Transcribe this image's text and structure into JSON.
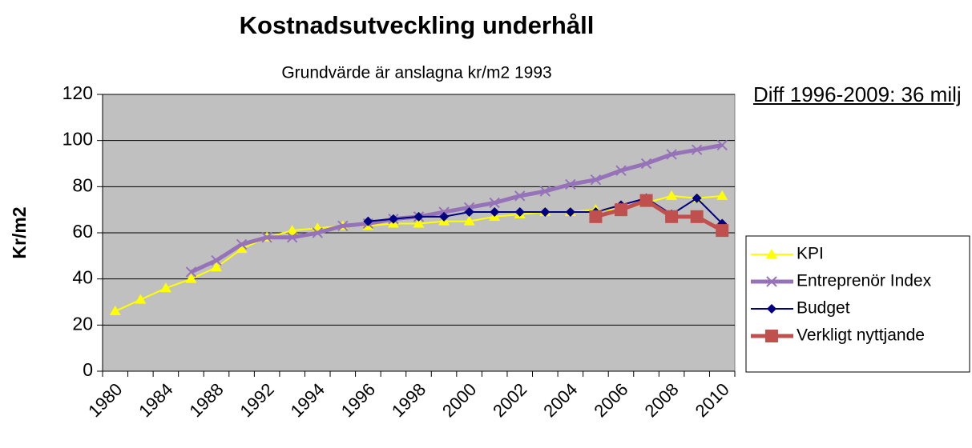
{
  "chart_data": {
    "type": "line",
    "title": "Kostnadsutveckling underhåll",
    "subtitle": "Grundvärde är anslagna kr/m2 1993",
    "y_label": "Kr/m2",
    "annotation": "Diff 1996-2009: 36 milj",
    "categories": [
      "1980",
      null,
      "1984",
      null,
      "1988",
      null,
      "1992",
      null,
      "1994",
      null,
      "1996",
      null,
      "1998",
      null,
      "2000",
      null,
      "2002",
      null,
      "2004",
      null,
      "2006",
      null,
      "2008",
      null,
      "2010"
    ],
    "series": [
      {
        "name": "KPI",
        "color": "#ffff00",
        "marker": "triangle",
        "values": [
          26,
          31,
          36,
          40,
          45,
          53,
          58,
          61,
          62,
          63,
          63,
          64,
          64,
          65,
          65,
          67,
          68,
          69,
          69,
          70,
          70,
          73,
          76,
          75,
          76
        ]
      },
      {
        "name": "Entreprenör Index",
        "color": "#9673b9",
        "marker": "x",
        "values": [
          null,
          null,
          null,
          43,
          48,
          55,
          58,
          58,
          60,
          63,
          64,
          66,
          67,
          69,
          71,
          73,
          76,
          78,
          81,
          83,
          87,
          90,
          94,
          96,
          98
        ]
      },
      {
        "name": "Budget",
        "color": "#000080",
        "marker": "diamond",
        "values": [
          null,
          null,
          null,
          null,
          null,
          null,
          null,
          null,
          null,
          null,
          65,
          66,
          67,
          67,
          69,
          69,
          69,
          69,
          69,
          69,
          72,
          75,
          68,
          75,
          64
        ]
      },
      {
        "name": "Verkligt nyttjande",
        "color": "#c0504d",
        "marker": "square",
        "values": [
          null,
          null,
          null,
          null,
          null,
          null,
          null,
          null,
          null,
          null,
          null,
          null,
          null,
          null,
          null,
          null,
          null,
          null,
          null,
          67,
          70,
          74,
          67,
          67,
          61
        ]
      }
    ],
    "ylim": [
      0,
      120
    ],
    "yticks": [
      0,
      20,
      40,
      60,
      80,
      100,
      120
    ],
    "grid": true,
    "legend": "right"
  }
}
